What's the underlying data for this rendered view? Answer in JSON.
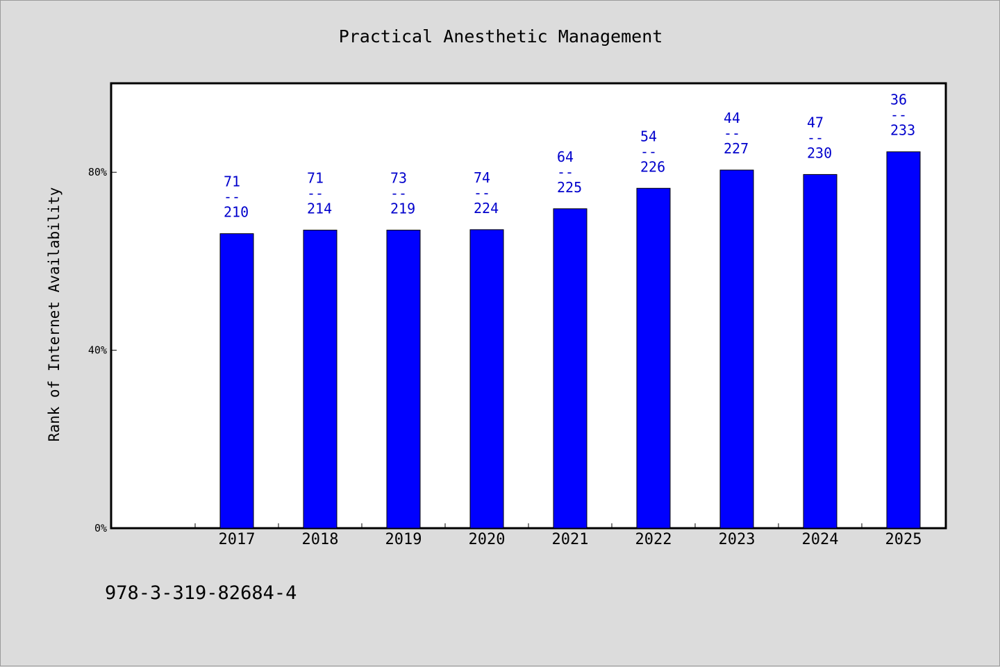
{
  "chart_data": {
    "type": "bar",
    "title": "Practical Anesthetic Management",
    "xlabel": "",
    "ylabel": "Rank of Internet Availability",
    "categories": [
      "2017",
      "2018",
      "2019",
      "2020",
      "2021",
      "2022",
      "2023",
      "2024",
      "2025"
    ],
    "values": [
      66.2,
      67.0,
      67.0,
      67.1,
      71.8,
      76.4,
      80.5,
      79.5,
      84.6
    ],
    "data_labels": [
      [
        "71",
        "--",
        "210"
      ],
      [
        "71",
        "--",
        "214"
      ],
      [
        "73",
        "--",
        "219"
      ],
      [
        "74",
        "--",
        "224"
      ],
      [
        "64",
        "--",
        "225"
      ],
      [
        "54",
        "--",
        "226"
      ],
      [
        "44",
        "--",
        "227"
      ],
      [
        "47",
        "--",
        "230"
      ],
      [
        "36",
        "--",
        "233"
      ]
    ],
    "y_ticks": [
      0,
      40,
      80
    ],
    "y_tick_labels": [
      "0%",
      "40%",
      "80%"
    ],
    "ylim": [
      0,
      100
    ],
    "grid": false,
    "colors": {
      "bar": "#0000ff",
      "bar_edge": "#000000",
      "label": "#0000cc",
      "plot_bg": "#ffffff",
      "figure_bg": "#dcdcdc"
    }
  },
  "footnote": "978-3-319-82684-4"
}
